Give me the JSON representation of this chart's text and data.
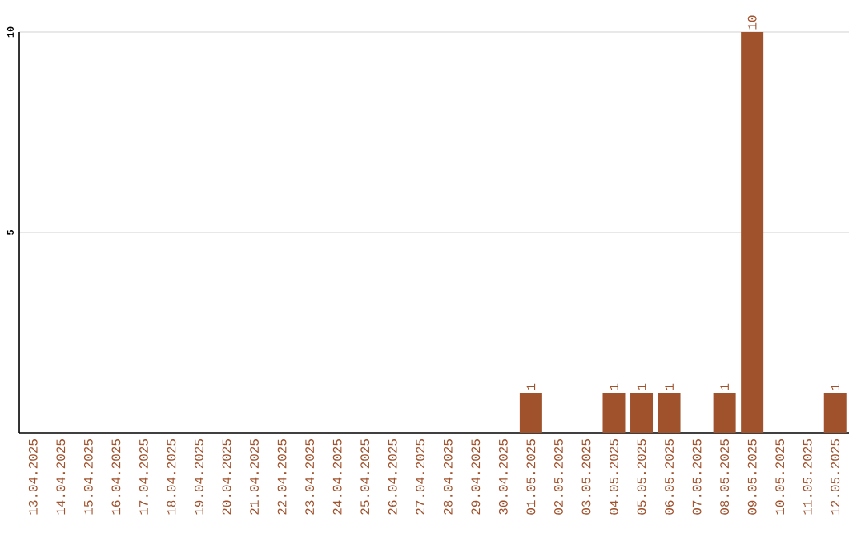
{
  "chart_data": {
    "type": "bar",
    "categories": [
      "13.04.2025",
      "14.04.2025",
      "15.04.2025",
      "16.04.2025",
      "17.04.2025",
      "18.04.2025",
      "19.04.2025",
      "20.04.2025",
      "21.04.2025",
      "22.04.2025",
      "23.04.2025",
      "24.04.2025",
      "25.04.2025",
      "26.04.2025",
      "27.04.2025",
      "28.04.2025",
      "29.04.2025",
      "30.04.2025",
      "01.05.2025",
      "02.05.2025",
      "03.05.2025",
      "04.05.2025",
      "05.05.2025",
      "06.05.2025",
      "07.05.2025",
      "08.05.2025",
      "09.05.2025",
      "10.05.2025",
      "11.05.2025",
      "12.05.2025"
    ],
    "values": [
      0,
      0,
      0,
      0,
      0,
      0,
      0,
      0,
      0,
      0,
      0,
      0,
      0,
      0,
      0,
      0,
      0,
      0,
      1,
      0,
      0,
      1,
      1,
      1,
      0,
      1,
      10,
      0,
      0,
      1
    ],
    "value_labels": [
      null,
      null,
      null,
      null,
      null,
      null,
      null,
      null,
      null,
      null,
      null,
      null,
      null,
      null,
      null,
      null,
      null,
      null,
      "1",
      null,
      null,
      "1",
      "1",
      "1",
      null,
      "1",
      "10",
      null,
      null,
      "1"
    ],
    "color": "#a0522d",
    "ylim": [
      0,
      10
    ],
    "yticks": [
      5,
      10
    ],
    "grid": "y"
  }
}
